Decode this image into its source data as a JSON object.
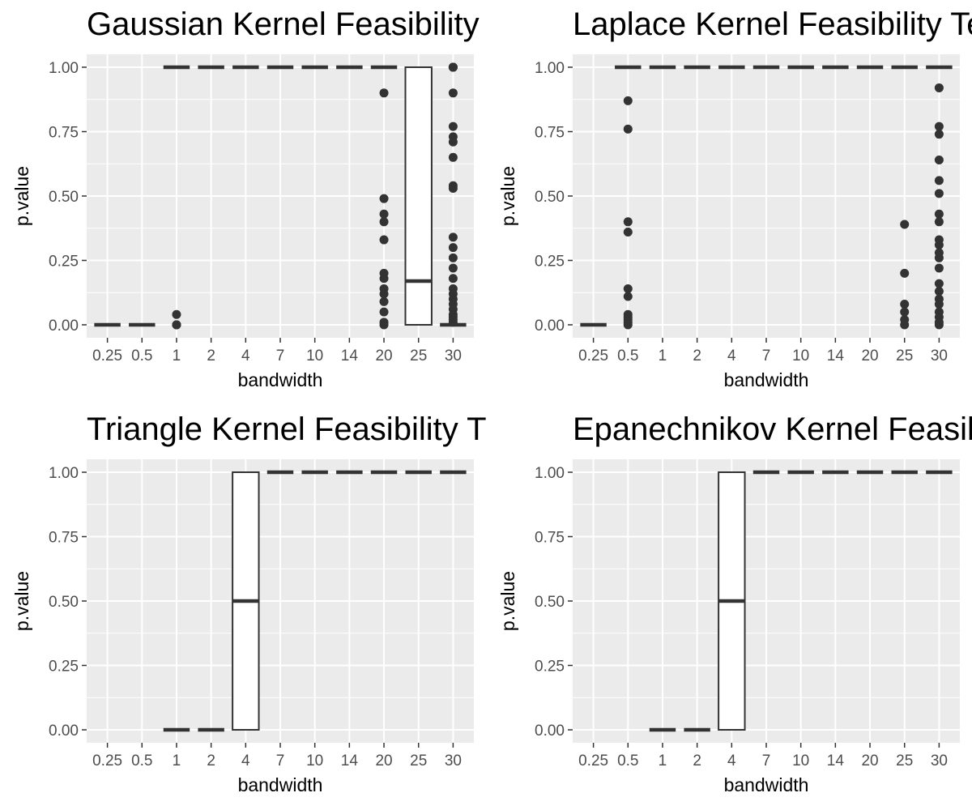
{
  "chart_data": [
    {
      "type": "box",
      "title": "Gaussian Kernel Feasibility",
      "xlabel": "bandwidth",
      "ylabel": "p.value",
      "categories": [
        "0.25",
        "0.5",
        "1",
        "2",
        "4",
        "7",
        "10",
        "14",
        "20",
        "25",
        "30"
      ],
      "ylim": [
        0,
        1
      ],
      "yticks": [
        "0.00",
        "0.25",
        "0.50",
        "0.75",
        "1.00"
      ],
      "grid": true,
      "boxes": [
        {
          "category": "0.25",
          "lower": 0,
          "q1": 0,
          "median": 0,
          "q3": 0,
          "upper": 0,
          "outliers": []
        },
        {
          "category": "0.5",
          "lower": 0,
          "q1": 0,
          "median": 0,
          "q3": 0,
          "upper": 0,
          "outliers": []
        },
        {
          "category": "1",
          "lower": 1,
          "q1": 1,
          "median": 1,
          "q3": 1,
          "upper": 1,
          "outliers": [
            0.04,
            0.0,
            0.0,
            0.0
          ]
        },
        {
          "category": "2",
          "lower": 1,
          "q1": 1,
          "median": 1,
          "q3": 1,
          "upper": 1,
          "outliers": []
        },
        {
          "category": "4",
          "lower": 1,
          "q1": 1,
          "median": 1,
          "q3": 1,
          "upper": 1,
          "outliers": []
        },
        {
          "category": "7",
          "lower": 1,
          "q1": 1,
          "median": 1,
          "q3": 1,
          "upper": 1,
          "outliers": []
        },
        {
          "category": "10",
          "lower": 1,
          "q1": 1,
          "median": 1,
          "q3": 1,
          "upper": 1,
          "outliers": []
        },
        {
          "category": "14",
          "lower": 1,
          "q1": 1,
          "median": 1,
          "q3": 1,
          "upper": 1,
          "outliers": []
        },
        {
          "category": "20",
          "lower": 1,
          "q1": 1,
          "median": 1,
          "q3": 1,
          "upper": 1,
          "outliers": [
            0.9,
            0.49,
            0.43,
            0.4,
            0.33,
            0.2,
            0.18,
            0.14,
            0.12,
            0.09,
            0.05,
            0.01,
            0.0
          ]
        },
        {
          "category": "25",
          "lower": 0,
          "q1": 0,
          "median": 0.17,
          "q3": 1,
          "upper": 1,
          "outliers": []
        },
        {
          "category": "30",
          "lower": 0,
          "q1": 0,
          "median": 0,
          "q3": 0,
          "upper": 0,
          "outliers": [
            1.0,
            1.0,
            1.0,
            1.0,
            0.9,
            0.77,
            0.73,
            0.71,
            0.65,
            0.54,
            0.53,
            0.34,
            0.3,
            0.26,
            0.22,
            0.18,
            0.14,
            0.12,
            0.1,
            0.08,
            0.06,
            0.04,
            0.03,
            0.02,
            0.01
          ]
        }
      ]
    },
    {
      "type": "box",
      "title": "Laplace Kernel Feasibility Te",
      "xlabel": "bandwidth",
      "ylabel": "p.value",
      "categories": [
        "0.25",
        "0.5",
        "1",
        "2",
        "4",
        "7",
        "10",
        "14",
        "20",
        "25",
        "30"
      ],
      "ylim": [
        0,
        1
      ],
      "yticks": [
        "0.00",
        "0.25",
        "0.50",
        "0.75",
        "1.00"
      ],
      "grid": true,
      "boxes": [
        {
          "category": "0.25",
          "lower": 0,
          "q1": 0,
          "median": 0,
          "q3": 0,
          "upper": 0,
          "outliers": []
        },
        {
          "category": "0.5",
          "lower": 1,
          "q1": 1,
          "median": 1,
          "q3": 1,
          "upper": 1,
          "outliers": [
            0.87,
            0.76,
            0.4,
            0.36,
            0.14,
            0.11,
            0.04,
            0.03,
            0.02,
            0.01,
            0.0
          ]
        },
        {
          "category": "1",
          "lower": 1,
          "q1": 1,
          "median": 1,
          "q3": 1,
          "upper": 1,
          "outliers": []
        },
        {
          "category": "2",
          "lower": 1,
          "q1": 1,
          "median": 1,
          "q3": 1,
          "upper": 1,
          "outliers": []
        },
        {
          "category": "4",
          "lower": 1,
          "q1": 1,
          "median": 1,
          "q3": 1,
          "upper": 1,
          "outliers": []
        },
        {
          "category": "7",
          "lower": 1,
          "q1": 1,
          "median": 1,
          "q3": 1,
          "upper": 1,
          "outliers": []
        },
        {
          "category": "10",
          "lower": 1,
          "q1": 1,
          "median": 1,
          "q3": 1,
          "upper": 1,
          "outliers": []
        },
        {
          "category": "14",
          "lower": 1,
          "q1": 1,
          "median": 1,
          "q3": 1,
          "upper": 1,
          "outliers": []
        },
        {
          "category": "20",
          "lower": 1,
          "q1": 1,
          "median": 1,
          "q3": 1,
          "upper": 1,
          "outliers": []
        },
        {
          "category": "25",
          "lower": 1,
          "q1": 1,
          "median": 1,
          "q3": 1,
          "upper": 1,
          "outliers": [
            0.39,
            0.2,
            0.08,
            0.05,
            0.02,
            0.0
          ]
        },
        {
          "category": "30",
          "lower": 1,
          "q1": 1,
          "median": 1,
          "q3": 1,
          "upper": 1,
          "outliers": [
            0.92,
            0.77,
            0.74,
            0.64,
            0.56,
            0.51,
            0.43,
            0.4,
            0.33,
            0.31,
            0.28,
            0.26,
            0.22,
            0.16,
            0.13,
            0.1,
            0.08,
            0.05,
            0.03,
            0.01,
            0.0
          ]
        }
      ]
    },
    {
      "type": "box",
      "title": "Triangle Kernel Feasibility T",
      "xlabel": "bandwidth",
      "ylabel": "p.value",
      "categories": [
        "0.25",
        "0.5",
        "1",
        "2",
        "4",
        "7",
        "10",
        "14",
        "20",
        "25",
        "30"
      ],
      "ylim": [
        0,
        1
      ],
      "yticks": [
        "0.00",
        "0.25",
        "0.50",
        "0.75",
        "1.00"
      ],
      "grid": true,
      "boxes": [
        {
          "category": "1",
          "lower": 0,
          "q1": 0,
          "median": 0,
          "q3": 0,
          "upper": 0,
          "outliers": []
        },
        {
          "category": "2",
          "lower": 0,
          "q1": 0,
          "median": 0,
          "q3": 0,
          "upper": 0,
          "outliers": []
        },
        {
          "category": "4",
          "lower": 0,
          "q1": 0,
          "median": 0.5,
          "q3": 1,
          "upper": 1,
          "outliers": []
        },
        {
          "category": "7",
          "lower": 1,
          "q1": 1,
          "median": 1,
          "q3": 1,
          "upper": 1,
          "outliers": []
        },
        {
          "category": "10",
          "lower": 1,
          "q1": 1,
          "median": 1,
          "q3": 1,
          "upper": 1,
          "outliers": []
        },
        {
          "category": "14",
          "lower": 1,
          "q1": 1,
          "median": 1,
          "q3": 1,
          "upper": 1,
          "outliers": []
        },
        {
          "category": "20",
          "lower": 1,
          "q1": 1,
          "median": 1,
          "q3": 1,
          "upper": 1,
          "outliers": []
        },
        {
          "category": "25",
          "lower": 1,
          "q1": 1,
          "median": 1,
          "q3": 1,
          "upper": 1,
          "outliers": []
        },
        {
          "category": "30",
          "lower": 1,
          "q1": 1,
          "median": 1,
          "q3": 1,
          "upper": 1,
          "outliers": []
        }
      ]
    },
    {
      "type": "box",
      "title": "Epanechnikov Kernel Feasib",
      "xlabel": "bandwidth",
      "ylabel": "p.value",
      "categories": [
        "0.25",
        "0.5",
        "1",
        "2",
        "4",
        "7",
        "10",
        "14",
        "20",
        "25",
        "30"
      ],
      "ylim": [
        0,
        1
      ],
      "yticks": [
        "0.00",
        "0.25",
        "0.50",
        "0.75",
        "1.00"
      ],
      "grid": true,
      "boxes": [
        {
          "category": "1",
          "lower": 0,
          "q1": 0,
          "median": 0,
          "q3": 0,
          "upper": 0,
          "outliers": []
        },
        {
          "category": "2",
          "lower": 0,
          "q1": 0,
          "median": 0,
          "q3": 0,
          "upper": 0,
          "outliers": []
        },
        {
          "category": "4",
          "lower": 0,
          "q1": 0,
          "median": 0.5,
          "q3": 1,
          "upper": 1,
          "outliers": []
        },
        {
          "category": "7",
          "lower": 1,
          "q1": 1,
          "median": 1,
          "q3": 1,
          "upper": 1,
          "outliers": []
        },
        {
          "category": "10",
          "lower": 1,
          "q1": 1,
          "median": 1,
          "q3": 1,
          "upper": 1,
          "outliers": []
        },
        {
          "category": "14",
          "lower": 1,
          "q1": 1,
          "median": 1,
          "q3": 1,
          "upper": 1,
          "outliers": []
        },
        {
          "category": "20",
          "lower": 1,
          "q1": 1,
          "median": 1,
          "q3": 1,
          "upper": 1,
          "outliers": []
        },
        {
          "category": "25",
          "lower": 1,
          "q1": 1,
          "median": 1,
          "q3": 1,
          "upper": 1,
          "outliers": []
        },
        {
          "category": "30",
          "lower": 1,
          "q1": 1,
          "median": 1,
          "q3": 1,
          "upper": 1,
          "outliers": []
        }
      ]
    }
  ],
  "colors": {
    "panel_background": "#ebebeb",
    "grid": "#ffffff",
    "box_fill": "#ffffff",
    "box_stroke": "#333333",
    "point": "#333333",
    "tick_text": "#4d4d4d",
    "text": "#000000"
  }
}
